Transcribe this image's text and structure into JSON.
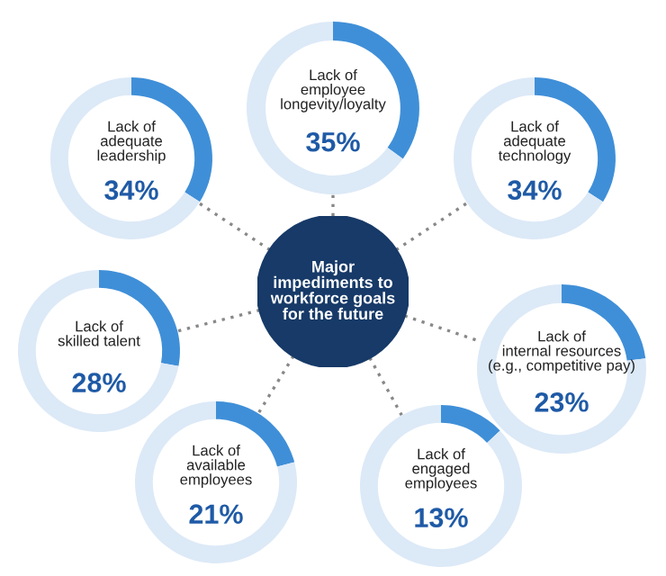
{
  "chart_data": [
    {
      "type": "other",
      "title": "Major\nimpediments to\nworkforce goals\nfor the future"
    },
    {
      "type": "donut",
      "title": "Lack of\nadequate\nleadership",
      "categories": [
        null,
        null
      ],
      "values": [
        34,
        66
      ],
      "annotations": [
        "34%"
      ],
      "colors": [
        "#3f8fd8",
        "#dce9f7"
      ]
    },
    {
      "type": "donut",
      "title": "Lack of\nemployee\nlongevity/loyalty",
      "categories": [
        null,
        null
      ],
      "values": [
        35,
        65
      ],
      "annotations": [
        "35%"
      ],
      "colors": [
        "#3f8fd8",
        "#dce9f7"
      ]
    },
    {
      "type": "donut",
      "title": "Lack of\nadequate\ntechnology",
      "categories": [
        null,
        null
      ],
      "values": [
        34,
        66
      ],
      "annotations": [
        "34%"
      ],
      "colors": [
        "#3f8fd8",
        "#dce9f7"
      ]
    },
    {
      "type": "donut",
      "title": "Lack of\nskilled talent",
      "categories": [
        null,
        null
      ],
      "values": [
        28,
        72
      ],
      "annotations": [
        "28%"
      ],
      "colors": [
        "#3f8fd8",
        "#dce9f7"
      ]
    },
    {
      "type": "donut",
      "title": "Lack of\ninternal resources\n(e.g., competitive pay)",
      "categories": [
        null,
        null
      ],
      "values": [
        23,
        77
      ],
      "annotations": [
        "23%"
      ],
      "colors": [
        "#3f8fd8",
        "#dce9f7"
      ]
    },
    {
      "type": "donut",
      "title": "Lack of\navailable\nemployees",
      "categories": [
        null,
        null
      ],
      "values": [
        21,
        79
      ],
      "annotations": [
        "21%"
      ],
      "colors": [
        "#3f8fd8",
        "#dce9f7"
      ]
    },
    {
      "type": "donut",
      "title": "Lack of\nengaged\nemployees",
      "categories": [
        null,
        null
      ],
      "values": [
        13,
        87
      ],
      "annotations": [
        "13%"
      ],
      "colors": [
        "#3f8fd8",
        "#dce9f7"
      ]
    }
  ]
}
